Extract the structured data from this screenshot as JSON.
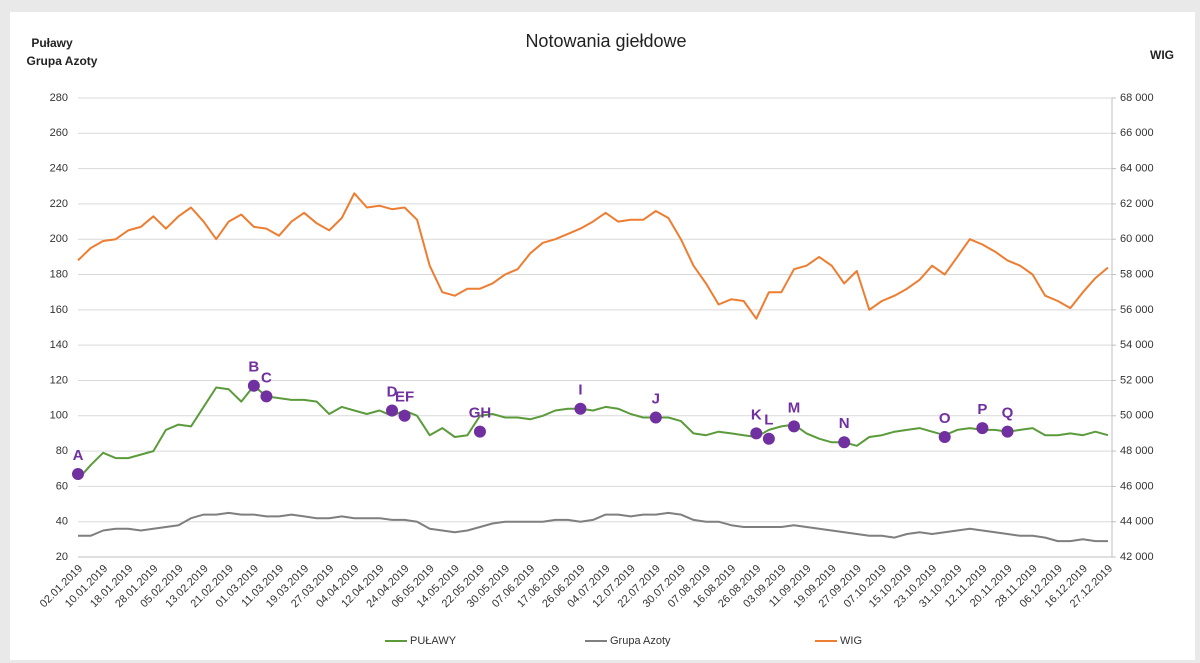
{
  "chart_data": {
    "type": "line",
    "title": "Notowania giełdowe",
    "y_label_lines": [
      "Puławy",
      "Grupa Azoty"
    ],
    "y2_label": "WIG",
    "categories": [
      "02.01.2019",
      null,
      "10.01.2019",
      null,
      "18.01.2019",
      null,
      "28.01.2019",
      null,
      "05.02.2019",
      null,
      "13.02.2019",
      null,
      "21.02.2019",
      null,
      "01.03.2019",
      null,
      "11.03.2019",
      null,
      "19.03.2019",
      null,
      "27.03.2019",
      null,
      "04.04.2019",
      null,
      "12.04.2019",
      null,
      "24.04.2019",
      null,
      "06.05.2019",
      null,
      "14.05.2019",
      null,
      "22.05.2019",
      null,
      "30.05.2019",
      null,
      "07.06.2019",
      null,
      "17.06.2019",
      null,
      "26.06.2019",
      null,
      "04.07.2019",
      null,
      "12.07.2019",
      null,
      "22.07.2019",
      null,
      "30.07.2019",
      null,
      "07.08.2019",
      null,
      "16.08.2019",
      null,
      "26.08.2019",
      null,
      "03.09.2019",
      null,
      "11.09.2019",
      null,
      "19.09.2019",
      null,
      "27.09.2019",
      null,
      "07.10.2019",
      null,
      "15.10.2019",
      null,
      "23.10.2019",
      null,
      "31.10.2019",
      null,
      "12.11.2019",
      null,
      "20.11.2019",
      null,
      "28.11.2019",
      null,
      "06.12.2019",
      null,
      "16.12.2019",
      null,
      "27.12.2019"
    ],
    "series": [
      {
        "name": "PUŁAWY",
        "color": "#5b9b3b",
        "values": [
          64,
          72,
          79,
          76,
          76,
          78,
          80,
          92,
          95,
          94,
          105,
          116,
          115,
          108,
          117,
          111,
          110,
          109,
          109,
          108,
          101,
          105,
          103,
          101,
          103,
          100,
          103,
          100,
          89,
          93,
          88,
          89,
          100,
          101,
          99,
          99,
          98,
          100,
          103,
          104,
          104,
          103,
          105,
          104,
          101,
          99,
          99,
          99,
          97,
          90,
          89,
          91,
          90,
          89,
          88,
          92,
          94,
          95,
          90,
          87,
          85,
          85,
          83,
          88,
          89,
          91,
          92,
          93,
          91,
          89,
          92,
          93,
          92,
          92,
          91,
          92,
          93,
          89,
          89,
          90,
          89,
          91,
          89
        ]
      },
      {
        "name": "Grupa Azoty",
        "color": "#7f7f7f",
        "values": [
          32,
          32,
          35,
          36,
          36,
          35,
          36,
          37,
          38,
          42,
          44,
          44,
          45,
          44,
          44,
          43,
          43,
          44,
          43,
          42,
          42,
          43,
          42,
          42,
          42,
          41,
          41,
          40,
          36,
          35,
          34,
          35,
          37,
          39,
          40,
          40,
          40,
          40,
          41,
          41,
          40,
          41,
          44,
          44,
          43,
          44,
          44,
          45,
          44,
          41,
          40,
          40,
          38,
          37,
          37,
          37,
          37,
          38,
          37,
          36,
          35,
          34,
          33,
          32,
          32,
          31,
          33,
          34,
          33,
          34,
          35,
          36,
          35,
          34,
          33,
          32,
          32,
          31,
          29,
          29,
          30,
          29,
          29
        ]
      },
      {
        "name": "WIG",
        "color": "#ed7d31",
        "axis": "y2",
        "values": [
          58800,
          59500,
          59900,
          60000,
          60500,
          60700,
          61300,
          60600,
          61300,
          61800,
          61000,
          60000,
          61000,
          61400,
          60700,
          60600,
          60200,
          61000,
          61500,
          60900,
          60500,
          61200,
          62600,
          61800,
          61900,
          61700,
          61800,
          61100,
          58500,
          57000,
          56800,
          57200,
          57200,
          57500,
          58000,
          58300,
          59200,
          59800,
          60000,
          60300,
          60600,
          61000,
          61500,
          61000,
          61100,
          61100,
          61600,
          61200,
          60000,
          58500,
          57500,
          56300,
          56600,
          56500,
          55500,
          57000,
          57000,
          58300,
          58500,
          59000,
          58500,
          57500,
          58200,
          56000,
          56500,
          56800,
          57200,
          57700,
          58500,
          58000,
          59000,
          60000,
          59700,
          59300,
          58800,
          58500,
          58000,
          56800,
          56500,
          56100,
          57000,
          57800,
          58400
        ]
      }
    ],
    "annotations": [
      {
        "label": "A",
        "x": 0,
        "y": 67
      },
      {
        "label": "B",
        "x": 14,
        "y": 117
      },
      {
        "label": "C",
        "x": 15,
        "y": 111
      },
      {
        "label": "D",
        "x": 25,
        "y": 103
      },
      {
        "label": "EF",
        "x": 26,
        "y": 100
      },
      {
        "label": "GH",
        "x": 32,
        "y": 91
      },
      {
        "label": "I",
        "x": 40,
        "y": 104
      },
      {
        "label": "J",
        "x": 46,
        "y": 99
      },
      {
        "label": "K",
        "x": 54,
        "y": 90
      },
      {
        "label": "L",
        "x": 55,
        "y": 87
      },
      {
        "label": "M",
        "x": 57,
        "y": 94
      },
      {
        "label": "N",
        "x": 61,
        "y": 85
      },
      {
        "label": "O",
        "x": 69,
        "y": 88
      },
      {
        "label": "P",
        "x": 72,
        "y": 93
      },
      {
        "label": "Q",
        "x": 74,
        "y": 91
      }
    ],
    "annotation_color": "#7030a0",
    "ylim": [
      20,
      280
    ],
    "yticks": [
      20,
      40,
      60,
      80,
      100,
      120,
      140,
      160,
      180,
      200,
      220,
      240,
      260,
      280
    ],
    "y2lim": [
      42000,
      68000
    ],
    "y2ticks": [
      {
        "value": 42000,
        "label": "42 000"
      },
      {
        "value": 44000,
        "label": "44 000"
      },
      {
        "value": 46000,
        "label": "46 000"
      },
      {
        "value": 48000,
        "label": "48 000"
      },
      {
        "value": 50000,
        "label": "50 000"
      },
      {
        "value": 52000,
        "label": "52 000"
      },
      {
        "value": 54000,
        "label": "54 000"
      },
      {
        "value": 56000,
        "label": "56 000"
      },
      {
        "value": 58000,
        "label": "58 000"
      },
      {
        "value": 60000,
        "label": "60 000"
      },
      {
        "value": 62000,
        "label": "62 000"
      },
      {
        "value": 64000,
        "label": "64 000"
      },
      {
        "value": 66000,
        "label": "66 000"
      },
      {
        "value": 68000,
        "label": "68 000"
      }
    ],
    "grid": true,
    "legend": "bottom"
  }
}
